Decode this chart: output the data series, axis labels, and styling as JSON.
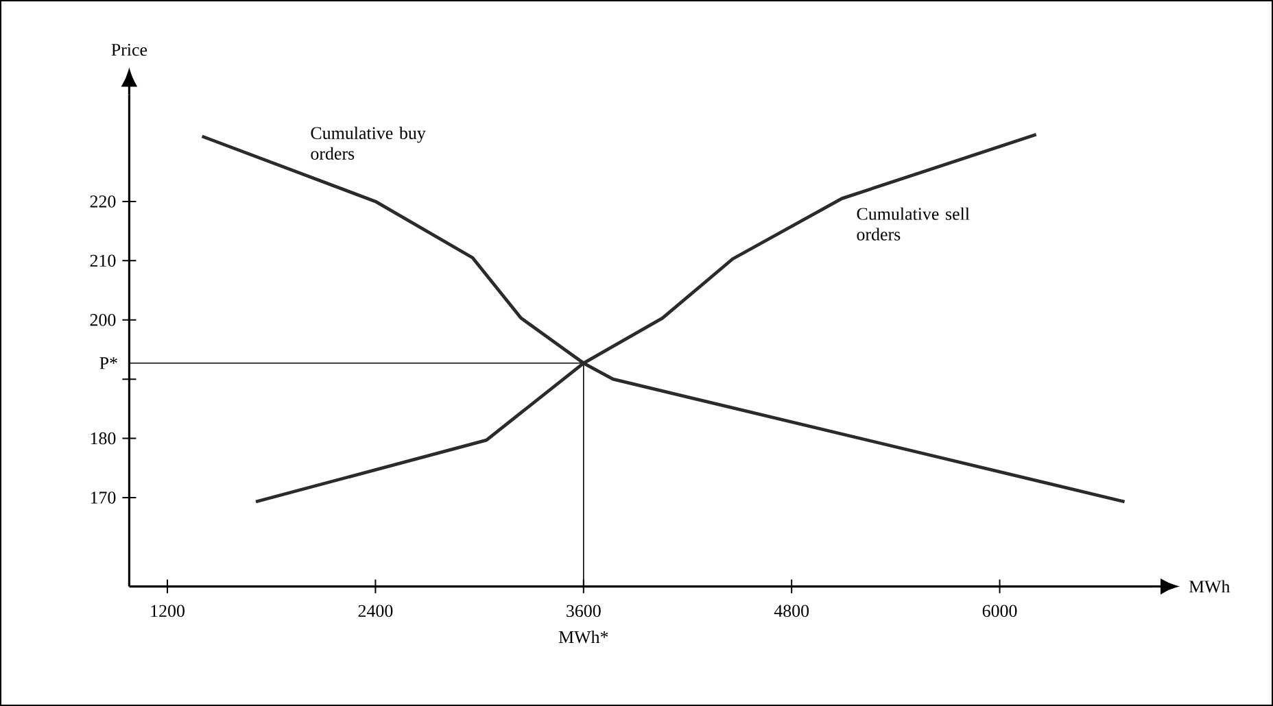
{
  "chart_data": {
    "type": "line",
    "xlabel": "MWh",
    "ylabel": "Price",
    "xlim": [
      980,
      6880
    ],
    "ylim": [
      155,
      238
    ],
    "xticks": [
      1200,
      2400,
      3600,
      4800,
      6000
    ],
    "yticks": [
      170,
      180,
      {
        "value": 190,
        "label": null
      },
      200,
      210,
      220
    ],
    "series": [
      {
        "name": "Cumulative buy orders",
        "color": "#2b2b2b",
        "x": [
          1400,
          2400,
          2960,
          3240,
          3600,
          3770,
          6720
        ],
        "values": [
          231,
          220,
          210.5,
          200.3,
          192.7,
          190,
          169.3
        ]
      },
      {
        "name": "Cumulative sell orders",
        "color": "#2b2b2b",
        "x": [
          1710,
          3040,
          3600,
          4055,
          4460,
          5090,
          6210
        ],
        "values": [
          169.3,
          179.7,
          192.7,
          200.3,
          210.3,
          220.5,
          231.3
        ]
      }
    ],
    "ref_lines": [
      {
        "axis": "y",
        "value": 192.7,
        "label": "P*"
      },
      {
        "axis": "x",
        "value": 3600,
        "label": "MWh*"
      }
    ],
    "grid": false,
    "marker": "none",
    "line_style": "solid"
  }
}
